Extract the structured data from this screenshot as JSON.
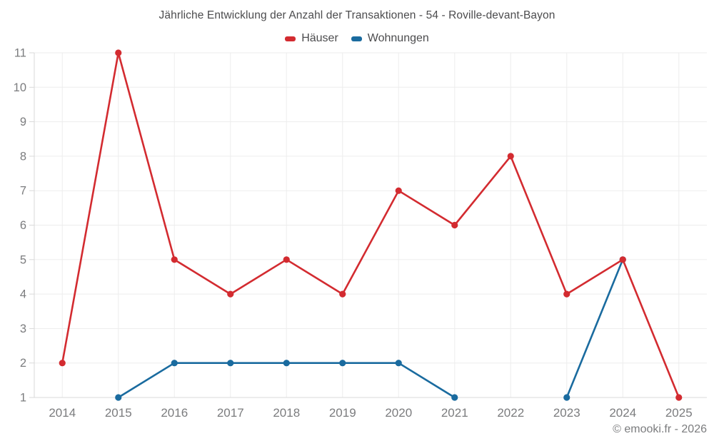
{
  "chart_data": {
    "type": "line",
    "title": "Jährliche Entwicklung der Anzahl der Transaktionen - 54 - Roville-devant-Bayon",
    "categories": [
      "2014",
      "2015",
      "2016",
      "2017",
      "2018",
      "2019",
      "2020",
      "2021",
      "2022",
      "2023",
      "2024",
      "2025"
    ],
    "series": [
      {
        "name": "Häuser",
        "color": "#d32b30",
        "values": [
          2,
          11,
          5,
          4,
          5,
          4,
          7,
          6,
          8,
          4,
          5,
          1
        ]
      },
      {
        "name": "Wohnungen",
        "color": "#1a6b9f",
        "values": [
          null,
          1,
          2,
          2,
          2,
          2,
          2,
          1,
          null,
          1,
          5,
          null
        ]
      }
    ],
    "xlabel": "",
    "ylabel": "",
    "ylim": [
      1,
      11
    ],
    "y_ticks": [
      1,
      2,
      3,
      4,
      5,
      6,
      7,
      8,
      9,
      10,
      11
    ],
    "grid": true,
    "legend_position": "top",
    "colors": {
      "gridline": "#ededed",
      "axis_line": "#d9d9d9",
      "tick": "#d9d9d9",
      "axis_label_text": "#7b7c7e",
      "title_text": "#4c4c4e"
    }
  },
  "footer": {
    "copyright": "© emooki.fr - 2026"
  }
}
